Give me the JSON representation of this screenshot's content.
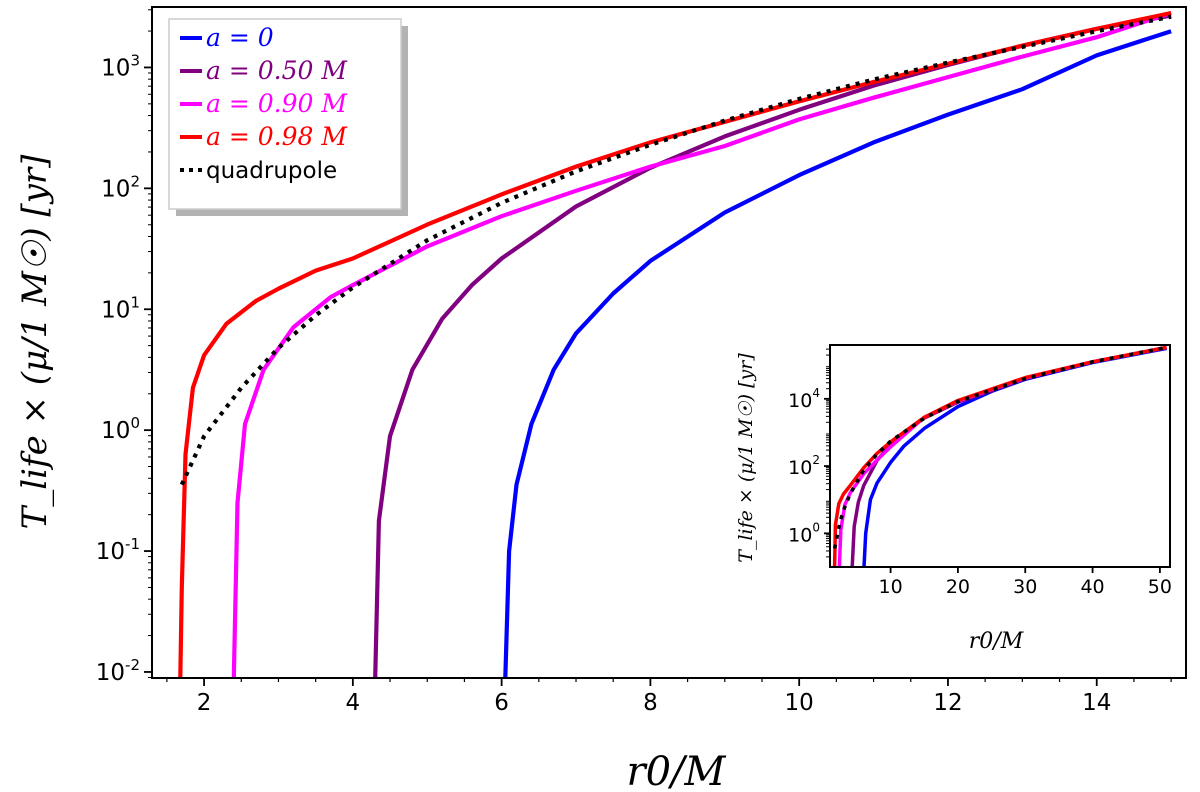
{
  "chart_data": [
    {
      "type": "line",
      "title": "",
      "xlabel": "r0/M",
      "ylabel": "T_life × (μ/1 M☉) [yr]",
      "xscale": "linear",
      "yscale": "log",
      "xlim": [
        1.3,
        15.2
      ],
      "ylim_log10": [
        -2.05,
        3.5
      ],
      "x_ticks": [
        2,
        4,
        6,
        8,
        10,
        12,
        14
      ],
      "x_tick_labels": [
        "2",
        "4",
        "6",
        "8",
        "10",
        "12",
        "14"
      ],
      "y_ticks_log10": [
        -2,
        -1,
        0,
        1,
        2,
        3
      ],
      "y_tick_bases": [
        "10",
        "10",
        "10",
        "10",
        "10",
        "10"
      ],
      "y_tick_exps": [
        "-2",
        "-1",
        "0",
        "1",
        "2",
        "3"
      ],
      "legend_position": "top-left",
      "series": [
        {
          "name": "a = 0",
          "color": "#0000ff",
          "style": "solid",
          "x": [
            6.05,
            6.1,
            6.2,
            6.4,
            6.7,
            7.0,
            7.5,
            8.0,
            9.0,
            10.0,
            11.0,
            12.0,
            13.0,
            14.0,
            15.0
          ],
          "log10_y": [
            -2.05,
            -1.0,
            -0.45,
            0.05,
            0.5,
            0.8,
            1.13,
            1.4,
            1.8,
            2.11,
            2.38,
            2.61,
            2.82,
            3.1,
            3.3
          ]
        },
        {
          "name": "a = 0.50 M",
          "color": "#800080",
          "style": "solid",
          "x": [
            4.3,
            4.35,
            4.5,
            4.8,
            5.2,
            5.6,
            6.0,
            7.0,
            8.0,
            9.0,
            10.0,
            11.0,
            12.0,
            13.0,
            14.0,
            15.0
          ],
          "log10_y": [
            -2.05,
            -0.75,
            -0.05,
            0.5,
            0.92,
            1.2,
            1.42,
            1.85,
            2.17,
            2.43,
            2.65,
            2.85,
            3.02,
            3.18,
            3.32,
            3.43
          ]
        },
        {
          "name": "a = 0.90 M",
          "color": "#ff00ff",
          "style": "solid",
          "x": [
            2.4,
            2.45,
            2.55,
            2.8,
            3.2,
            3.7,
            4.0,
            5.0,
            6.0,
            7.0,
            8.0,
            9.0,
            10.0,
            11.0,
            12.0,
            13.0,
            14.0,
            15.0
          ],
          "log10_y": [
            -2.05,
            -0.6,
            0.05,
            0.5,
            0.85,
            1.1,
            1.2,
            1.52,
            1.77,
            1.98,
            2.18,
            2.35,
            2.57,
            2.75,
            2.92,
            3.09,
            3.25,
            3.45
          ]
        },
        {
          "name": "a = 0.98 M",
          "color": "#ff0000",
          "style": "solid",
          "x": [
            1.68,
            1.7,
            1.75,
            1.85,
            2.0,
            2.3,
            2.7,
            3.0,
            3.5,
            4.0,
            5.0,
            6.0,
            7.0,
            8.0,
            9.0,
            10.0,
            11.0,
            12.0,
            13.0,
            14.0,
            15.0
          ],
          "log10_y": [
            -2.05,
            -1.3,
            -0.2,
            0.35,
            0.62,
            0.88,
            1.07,
            1.17,
            1.32,
            1.42,
            1.7,
            1.95,
            2.18,
            2.38,
            2.55,
            2.72,
            2.88,
            3.03,
            3.18,
            3.32,
            3.45
          ]
        },
        {
          "name": "quadrupole",
          "color": "#000000",
          "style": "dotted",
          "x": [
            1.7,
            2.0,
            2.5,
            3.0,
            3.5,
            4.0,
            5.0,
            6.0,
            7.0,
            8.0,
            9.0,
            10.0,
            11.0,
            12.0,
            13.0,
            14.0,
            15.0
          ],
          "log10_y": [
            -0.45,
            -0.05,
            0.35,
            0.68,
            0.95,
            1.18,
            1.57,
            1.88,
            2.14,
            2.36,
            2.56,
            2.74,
            2.9,
            3.04,
            3.17,
            3.3,
            3.42
          ]
        }
      ]
    },
    {
      "type": "line",
      "title": "",
      "xlabel": "r0/M",
      "ylabel": "T_life × (μ/1 M☉) [yr]",
      "xscale": "linear",
      "yscale": "log",
      "xlim": [
        1.0,
        51.5
      ],
      "ylim_log10": [
        -1.0,
        5.6
      ],
      "x_ticks": [
        10,
        20,
        30,
        40,
        50
      ],
      "x_tick_labels": [
        "10",
        "20",
        "30",
        "40",
        "50"
      ],
      "y_ticks_log10": [
        0,
        2,
        4
      ],
      "y_tick_bases": [
        "10",
        "10",
        "10"
      ],
      "y_tick_exps": [
        "0",
        "2",
        "4"
      ],
      "series": [
        {
          "name": "a = 0",
          "color": "#0000ff",
          "style": "solid",
          "x": [
            6.05,
            6.3,
            7.0,
            8.0,
            10.0,
            12.0,
            15.0,
            20.0,
            25.0,
            30.0,
            40.0,
            51.0
          ],
          "log10_y": [
            -1.0,
            0.0,
            1.0,
            1.5,
            2.11,
            2.6,
            3.12,
            3.77,
            4.22,
            4.58,
            5.08,
            5.5
          ]
        },
        {
          "name": "a = 0.50 M",
          "color": "#800080",
          "style": "solid",
          "x": [
            4.3,
            4.6,
            5.2,
            6.0,
            8.0,
            10.0,
            12.0,
            15.0,
            20.0,
            30.0,
            40.0,
            51.0
          ],
          "log10_y": [
            -1.0,
            0.2,
            0.92,
            1.42,
            2.17,
            2.65,
            3.0,
            3.43,
            3.9,
            4.6,
            5.1,
            5.52
          ]
        },
        {
          "name": "a = 0.90 M",
          "color": "#ff00ff",
          "style": "solid",
          "x": [
            2.4,
            2.6,
            3.2,
            4.0,
            6.0,
            8.0,
            10.0,
            15.0,
            20.0,
            30.0,
            40.0,
            51.0
          ],
          "log10_y": [
            -1.0,
            0.1,
            0.85,
            1.2,
            1.77,
            2.18,
            2.57,
            3.45,
            3.93,
            4.62,
            5.1,
            5.53
          ]
        },
        {
          "name": "a = 0.98 M",
          "color": "#ff0000",
          "style": "solid",
          "x": [
            1.68,
            1.8,
            2.3,
            3.0,
            4.0,
            6.0,
            8.0,
            10.0,
            15.0,
            20.0,
            30.0,
            40.0,
            51.0
          ],
          "log10_y": [
            -1.0,
            0.25,
            0.88,
            1.17,
            1.42,
            1.95,
            2.38,
            2.72,
            3.45,
            3.95,
            4.63,
            5.1,
            5.53
          ]
        },
        {
          "name": "quadrupole",
          "color": "#000000",
          "style": "dotted",
          "x": [
            1.7,
            2.5,
            3.0,
            4.0,
            6.0,
            8.0,
            10.0,
            15.0,
            20.0,
            30.0,
            40.0,
            51.0
          ],
          "log10_y": [
            -0.45,
            0.35,
            0.68,
            1.18,
            1.88,
            2.36,
            2.74,
            3.42,
            3.92,
            4.6,
            5.1,
            5.53
          ]
        }
      ]
    }
  ]
}
